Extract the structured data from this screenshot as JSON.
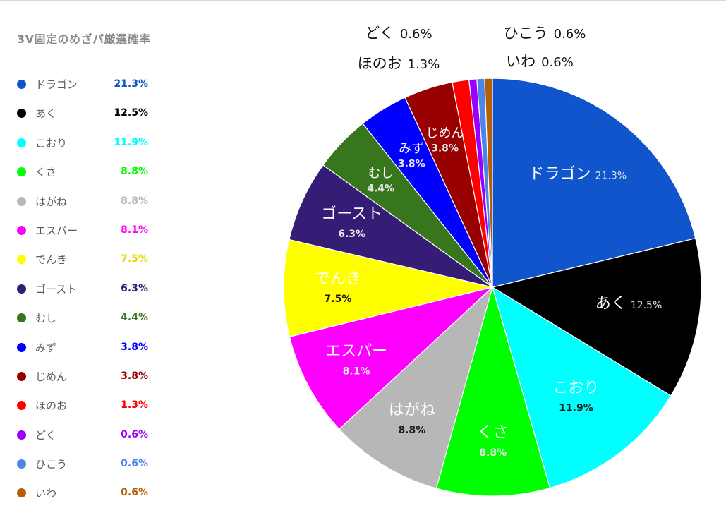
{
  "chart_data": {
    "type": "pie",
    "title": "3V固定のめざパ厳選確率",
    "legend_position": "left",
    "unit": "%",
    "slices": [
      {
        "label": "ドラゴン",
        "value": 21.3,
        "value_label": "21.3%",
        "color": "#1155cc"
      },
      {
        "label": "あく",
        "value": 12.5,
        "value_label": "12.5%",
        "color": "#000000"
      },
      {
        "label": "こおり",
        "value": 11.9,
        "value_label": "11.9%",
        "color": "#00ffff"
      },
      {
        "label": "くさ",
        "value": 8.8,
        "value_label": "8.8%",
        "color": "#00ff00"
      },
      {
        "label": "はがね",
        "value": 8.8,
        "value_label": "8.8%",
        "color": "#b7b7b7"
      },
      {
        "label": "エスパー",
        "value": 8.1,
        "value_label": "8.1%",
        "color": "#ff00ff"
      },
      {
        "label": "でんき",
        "value": 7.5,
        "value_label": "7.5%",
        "color": "#ffff00"
      },
      {
        "label": "ゴースト",
        "value": 6.3,
        "value_label": "6.3%",
        "color": "#351c75"
      },
      {
        "label": "むし",
        "value": 4.4,
        "value_label": "4.4%",
        "color": "#38761d"
      },
      {
        "label": "みず",
        "value": 3.8,
        "value_label": "3.8%",
        "color": "#0000ff"
      },
      {
        "label": "じめん",
        "value": 3.8,
        "value_label": "3.8%",
        "color": "#990000"
      },
      {
        "label": "ほのお",
        "value": 1.3,
        "value_label": "1.3%",
        "color": "#ff0000"
      },
      {
        "label": "どく",
        "value": 0.6,
        "value_label": "0.6%",
        "color": "#9900ff"
      },
      {
        "label": "ひこう",
        "value": 0.6,
        "value_label": "0.6%",
        "color": "#4a86e8"
      },
      {
        "label": "いわ",
        "value": 0.6,
        "value_label": "0.6%",
        "color": "#b45f06"
      }
    ],
    "outside_labels": [
      {
        "name": "どく",
        "pct": "0.6%"
      },
      {
        "name": "ほのお",
        "pct": "1.3%"
      },
      {
        "name": "ひこう",
        "pct": "0.6%"
      },
      {
        "name": "いわ",
        "pct": "0.6%"
      }
    ]
  }
}
